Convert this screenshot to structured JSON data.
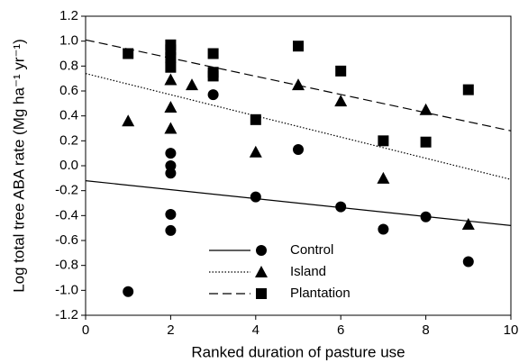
{
  "chart_data": {
    "type": "scatter",
    "xlabel": "Ranked duration of pasture use",
    "ylabel": "Log total tree ABA rate (Mg ha⁻¹ yr⁻¹)",
    "xlim": [
      0,
      10
    ],
    "xticks": [
      0,
      2,
      4,
      6,
      8,
      10
    ],
    "ylim": [
      -1.2,
      1.2
    ],
    "yticks": [
      -1.2,
      {
        "value": -1,
        "label": "-1.0"
      },
      -0.8,
      -0.6,
      -0.4,
      -0.2,
      {
        "value": 0,
        "label": "0.0"
      },
      0.2,
      0.4,
      0.6,
      0.8,
      {
        "value": 1,
        "label": "1.0"
      },
      1.2
    ],
    "legend": "lower center",
    "series": [
      {
        "name": "Control",
        "color": "#000000",
        "marker": "circle",
        "dash": "solid",
        "x": [
          1,
          2,
          2,
          2,
          2,
          2,
          3,
          4,
          5,
          6,
          7,
          8,
          9
        ],
        "values": [
          -1.01,
          0.1,
          0.0,
          -0.06,
          -0.39,
          -0.52,
          0.57,
          -0.25,
          0.13,
          -0.33,
          -0.51,
          -0.41,
          -0.77
        ],
        "fit_x": [
          0,
          10
        ],
        "fit_y": [
          -0.12,
          -0.48
        ]
      },
      {
        "name": "Island",
        "color": "#000000",
        "marker": "triangle",
        "dash": "dotted",
        "x": [
          1,
          2,
          2,
          2,
          2.5,
          4,
          5,
          6,
          7,
          8,
          9
        ],
        "values": [
          0.36,
          0.69,
          0.47,
          0.3,
          0.65,
          0.11,
          0.65,
          0.52,
          -0.1,
          0.45,
          -0.47
        ],
        "fit_x": [
          0,
          10
        ],
        "fit_y": [
          0.74,
          -0.11
        ]
      },
      {
        "name": "Plantation",
        "color": "#000000",
        "marker": "square",
        "dash": "dashed",
        "x": [
          1,
          2,
          2,
          2,
          2,
          3,
          3,
          3,
          4,
          5,
          6,
          7,
          8,
          9
        ],
        "values": [
          0.9,
          0.97,
          0.93,
          0.87,
          0.79,
          0.9,
          0.75,
          0.72,
          0.37,
          0.96,
          0.76,
          0.2,
          0.19,
          0.61
        ],
        "fit_x": [
          0,
          10
        ],
        "fit_y": [
          1.01,
          0.28
        ]
      }
    ]
  }
}
